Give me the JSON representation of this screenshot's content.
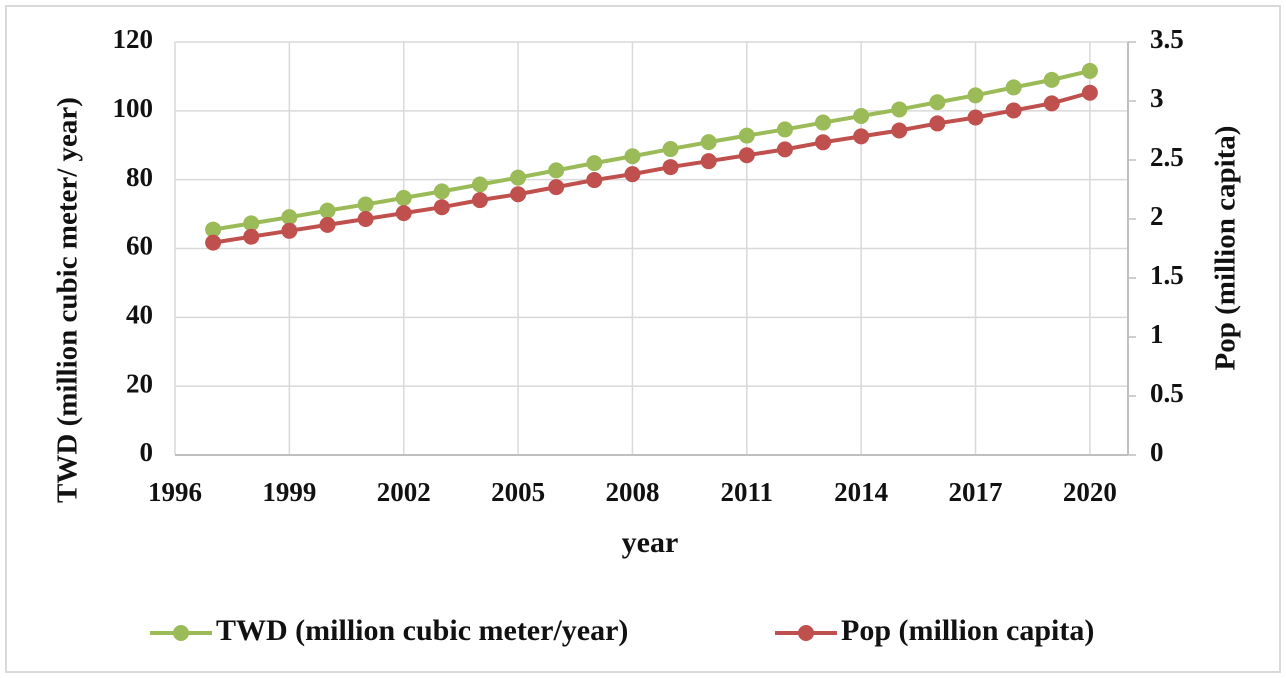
{
  "chart_data": {
    "type": "line",
    "x_label": "year",
    "y_label": "TWD (million  cubic meter/ year)",
    "y2_label": "Pop (million  capita)",
    "x": [
      1997,
      1998,
      1999,
      2000,
      2001,
      2002,
      2003,
      2004,
      2005,
      2006,
      2007,
      2008,
      2009,
      2010,
      2011,
      2012,
      2013,
      2014,
      2015,
      2016,
      2017,
      2018,
      2019,
      2020
    ],
    "series": [
      {
        "name": "TWD (million cubic meter/year)",
        "color": "#9bbb59",
        "axis": "y",
        "values": [
          65.5,
          67.3,
          69.1,
          71,
          72.8,
          74.7,
          76.6,
          78.6,
          80.6,
          82.7,
          84.8,
          86.8,
          88.9,
          90.9,
          92.8,
          94.6,
          96.6,
          98.5,
          100.4,
          102.5,
          104.5,
          106.8,
          109,
          111.6
        ]
      },
      {
        "name": "Pop (million capita)",
        "color": "#c0504d",
        "axis": "y2",
        "values": [
          1.8,
          1.85,
          1.9,
          1.95,
          2.0,
          2.05,
          2.1,
          2.16,
          2.21,
          2.27,
          2.33,
          2.38,
          2.44,
          2.49,
          2.54,
          2.59,
          2.65,
          2.7,
          2.75,
          2.81,
          2.86,
          2.92,
          2.98,
          3.07
        ]
      }
    ],
    "xlim": [
      1996,
      2021
    ],
    "xticks": [
      1996,
      1999,
      2002,
      2005,
      2008,
      2011,
      2014,
      2017,
      2020
    ],
    "ylim": [
      0,
      120
    ],
    "yticks": [
      0,
      20,
      40,
      60,
      80,
      100,
      120
    ],
    "y2lim": [
      0,
      3.5
    ],
    "y2ticks": [
      0,
      0.5,
      1,
      1.5,
      2,
      2.5,
      3,
      3.5
    ],
    "grid": true,
    "legend": "bottom"
  }
}
